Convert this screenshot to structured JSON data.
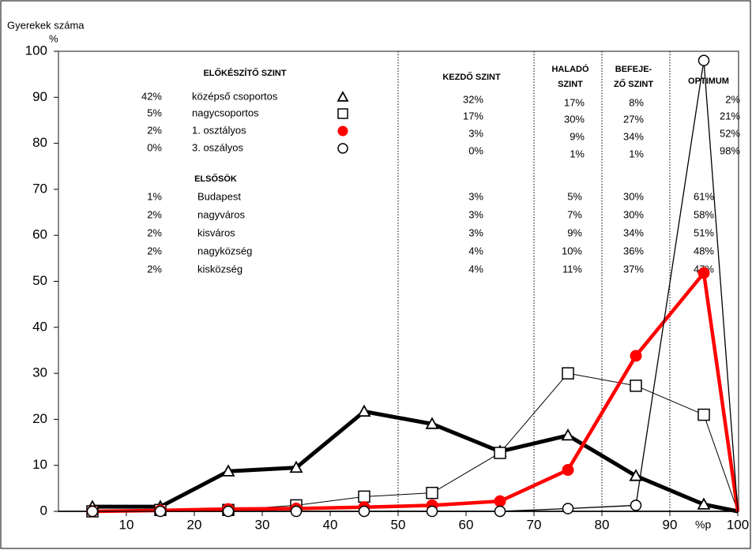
{
  "chart_data": {
    "type": "line",
    "title": "Gyerekek száma",
    "y_unit": "%",
    "x_label": "%p",
    "x": [
      5,
      15,
      25,
      35,
      45,
      55,
      65,
      75,
      85,
      95,
      100
    ],
    "xlim": [
      0,
      100
    ],
    "xticks": [
      10,
      20,
      30,
      40,
      50,
      60,
      70,
      80,
      90,
      100
    ],
    "ylim": [
      0,
      100
    ],
    "yticks": [
      0,
      10,
      20,
      30,
      40,
      50,
      60,
      70,
      80,
      90,
      100
    ],
    "dividers": [
      50,
      70,
      80,
      90
    ],
    "series": [
      {
        "name": "középső csoportos",
        "color": "#000000",
        "marker": "triangle",
        "values": [
          1,
          1,
          8.7,
          9.5,
          21.7,
          19,
          13,
          16.5,
          7.7,
          1.5,
          0
        ],
        "shares": [
          "42%",
          "32%",
          "17%",
          "8%",
          "2%"
        ]
      },
      {
        "name": "nagycsoportos",
        "color": "#000000",
        "marker": "square",
        "values": [
          0,
          0.3,
          0.3,
          1.3,
          3.2,
          4,
          12.7,
          30,
          27.3,
          21,
          0
        ],
        "shares": [
          "5%",
          "17%",
          "30%",
          "27%",
          "21%"
        ]
      },
      {
        "name": "1. osztályos",
        "color": "#ff0000",
        "marker": "dot",
        "values": [
          0,
          0.2,
          0.5,
          0.6,
          0.9,
          1.3,
          2.2,
          9,
          33.8,
          51.8,
          0
        ],
        "shares": [
          "2%",
          "3%",
          "9%",
          "34%",
          "52%"
        ]
      },
      {
        "name": "3. oszályos",
        "color": "#000000",
        "marker": "circle",
        "values": [
          0,
          0,
          0,
          0,
          0,
          0,
          0,
          0.6,
          1.3,
          98,
          0
        ],
        "shares": [
          "0%",
          "0%",
          "1%",
          "1%",
          "98%"
        ]
      }
    ],
    "levels": [
      [
        "ELŐKÉSZÍTŐ SZINT"
      ],
      [
        "KEZDŐ SZINT"
      ],
      [
        "HALADÓ",
        "SZINT"
      ],
      [
        "BEFEJE-",
        "ZŐ SZINT"
      ],
      [
        "OPTIMUM"
      ]
    ],
    "first_graders": {
      "title": "ELSŐSÖK",
      "rows": [
        {
          "name": "Budapest",
          "shares": [
            "1%",
            "3%",
            "5%",
            "30%",
            "61%"
          ]
        },
        {
          "name": "nagyváros",
          "shares": [
            "2%",
            "3%",
            "7%",
            "30%",
            "58%"
          ]
        },
        {
          "name": "kisváros",
          "shares": [
            "2%",
            "3%",
            "9%",
            "34%",
            "51%"
          ]
        },
        {
          "name": "nagyközség",
          "shares": [
            "2%",
            "4%",
            "10%",
            "36%",
            "48%"
          ]
        },
        {
          "name": "kisközség",
          "shares": [
            "2%",
            "4%",
            "11%",
            "37%",
            "47%"
          ]
        }
      ]
    }
  }
}
